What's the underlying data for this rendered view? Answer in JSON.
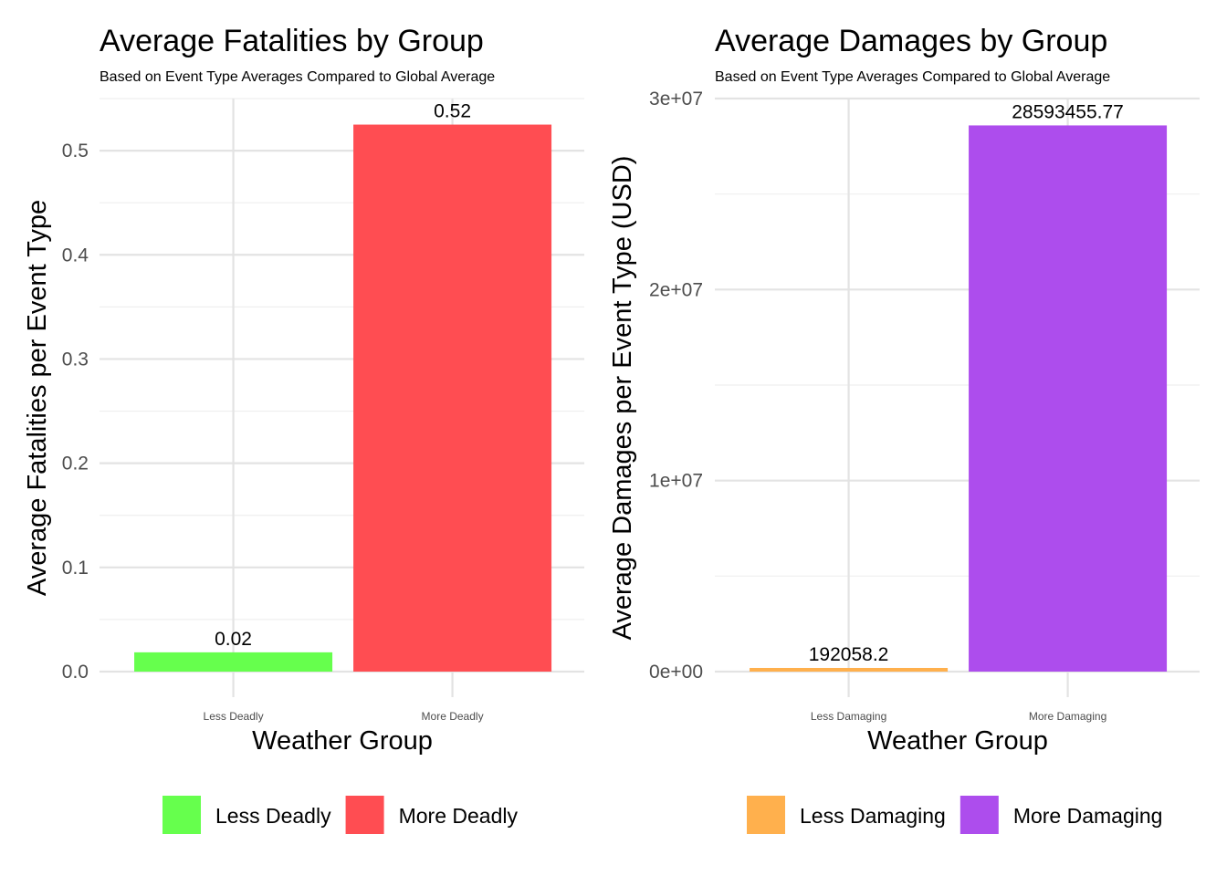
{
  "chart_data": [
    {
      "type": "bar",
      "title": "Average Fatalities by Group",
      "subtitle": "Based on Event Type Averages Compared to Global Average",
      "xlabel": "Weather Group",
      "ylabel": "Average Fatalities per Event Type",
      "categories": [
        "Less Deadly",
        "More Deadly"
      ],
      "values": [
        0.0185,
        0.525
      ],
      "value_labels": [
        "0.02",
        "0.52"
      ],
      "colors": [
        "#66ff4d",
        "#ff4d52"
      ],
      "ylim": [
        0,
        0.55
      ],
      "yticks": [
        0,
        0.1,
        0.2,
        0.3,
        0.4,
        0.5
      ],
      "ytick_labels": [
        "0.0",
        "0.1",
        "0.2",
        "0.3",
        "0.4",
        "0.5"
      ],
      "grid": true,
      "legend": {
        "placement": "bottom",
        "entries": [
          {
            "label": "Less Deadly",
            "color": "#66ff4d"
          },
          {
            "label": "More Deadly",
            "color": "#ff4d52"
          }
        ]
      }
    },
    {
      "type": "bar",
      "title": "Average Damages by Group",
      "subtitle": "Based on Event Type Averages Compared to Global Average",
      "xlabel": "Weather Group",
      "ylabel": "Average Damages per Event Type (USD)",
      "categories": [
        "Less Damaging",
        "More Damaging"
      ],
      "values": [
        192058.2,
        28593455.77
      ],
      "value_labels": [
        "192058.2",
        "28593455.77"
      ],
      "colors": [
        "#ffb04d",
        "#ad4ded"
      ],
      "ylim": [
        0,
        30000000
      ],
      "yticks": [
        0,
        10000000,
        20000000,
        30000000
      ],
      "ytick_labels": [
        "0e+00",
        "1e+07",
        "2e+07",
        "3e+07"
      ],
      "grid": true,
      "legend": {
        "placement": "bottom",
        "entries": [
          {
            "label": "Less Damaging",
            "color": "#ffb04d"
          },
          {
            "label": "More Damaging",
            "color": "#ad4ded"
          }
        ]
      }
    }
  ]
}
